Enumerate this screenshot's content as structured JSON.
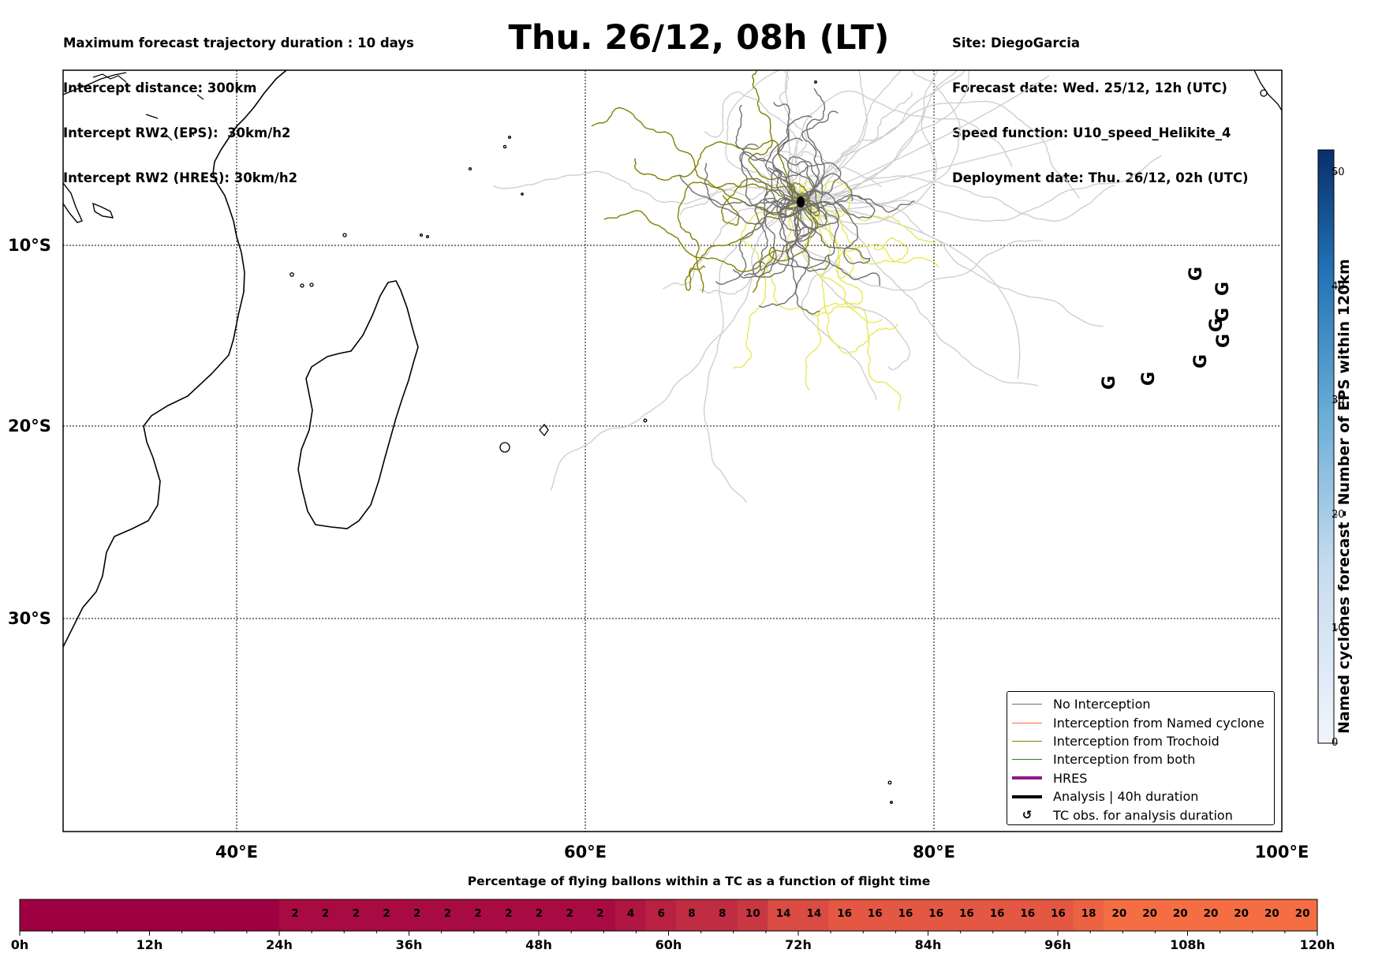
{
  "header": {
    "left": [
      "Maximum forecast trajectory duration : 10 days",
      "Intercept distance: 300km",
      "Intercept RW2 (EPS):  30km/h2",
      "Intercept RW2 (HRES): 30km/h2"
    ],
    "title": "Thu. 26/12, 08h (LT)",
    "right": [
      "Site: DiegoGarcia",
      "Forecast date: Wed. 25/12, 12h (UTC)",
      "Speed function: U10_speed_Helikite_4",
      "Deployment date: Thu. 26/12, 02h (UTC)"
    ]
  },
  "map": {
    "lat_labels": [
      "10°S",
      "20°S",
      "30°S"
    ],
    "lon_labels": [
      "40°E",
      "60°E",
      "80°E",
      "100°E"
    ],
    "extent": {
      "lon": [
        30,
        100
      ],
      "lat": [
        -42,
        0
      ]
    },
    "site_marker": "Diego Garcia launch point",
    "tc_symbol": "G"
  },
  "legend": {
    "items": [
      {
        "label": "No Interception",
        "color": "#6f6f6f",
        "width": 1.5,
        "icon": "line"
      },
      {
        "label": "Interception from Named cyclone",
        "color": "#ff6a33",
        "width": 1.5,
        "icon": "line"
      },
      {
        "label": "Interception from Trochoid",
        "color": "#808000",
        "width": 1.5,
        "icon": "line"
      },
      {
        "label": "Interception from both",
        "color": "#1a8c1a",
        "width": 1.5,
        "icon": "line"
      },
      {
        "label": "HRES",
        "color": "#8b1a8b",
        "width": 4,
        "icon": "line"
      },
      {
        "label": "Analysis | 40h duration",
        "color": "#000000",
        "width": 4,
        "icon": "line"
      },
      {
        "label": "TC obs. for analysis duration",
        "color": "#000000",
        "width": 0,
        "icon": "cyclone-symbol"
      }
    ]
  },
  "colorbar": {
    "title": "Named cyclones forecast - Number of EPS within 120km",
    "ticks": [
      "0",
      "10",
      "20",
      "30",
      "40",
      "50"
    ],
    "range": [
      0,
      52
    ],
    "color_low": "#f0f5fc",
    "color_high": "#08306b"
  },
  "timeline": {
    "title": "Percentage of flying ballons within a TC as a function of flight time",
    "percentages": [
      "",
      "",
      "",
      "",
      "",
      "",
      "",
      "",
      "2",
      "2",
      "2",
      "2",
      "2",
      "2",
      "2",
      "2",
      "2",
      "2",
      "2",
      "4",
      "6",
      "8",
      "8",
      "10",
      "14",
      "14",
      "16",
      "16",
      "16",
      "16",
      "16",
      "16",
      "16",
      "16",
      "18",
      "20",
      "20",
      "20",
      "20",
      "20",
      "20",
      "20"
    ],
    "values": [
      0,
      0,
      0,
      0,
      0,
      0,
      0,
      0,
      2,
      2,
      2,
      2,
      2,
      2,
      2,
      2,
      2,
      2,
      2,
      4,
      6,
      8,
      8,
      10,
      14,
      14,
      16,
      16,
      16,
      16,
      16,
      16,
      16,
      16,
      18,
      20,
      20,
      20,
      20,
      20,
      20,
      20
    ],
    "time_labels": [
      "0h",
      "12h",
      "24h",
      "36h",
      "48h",
      "60h",
      "72h",
      "84h",
      "96h",
      "108h",
      "120h"
    ]
  }
}
